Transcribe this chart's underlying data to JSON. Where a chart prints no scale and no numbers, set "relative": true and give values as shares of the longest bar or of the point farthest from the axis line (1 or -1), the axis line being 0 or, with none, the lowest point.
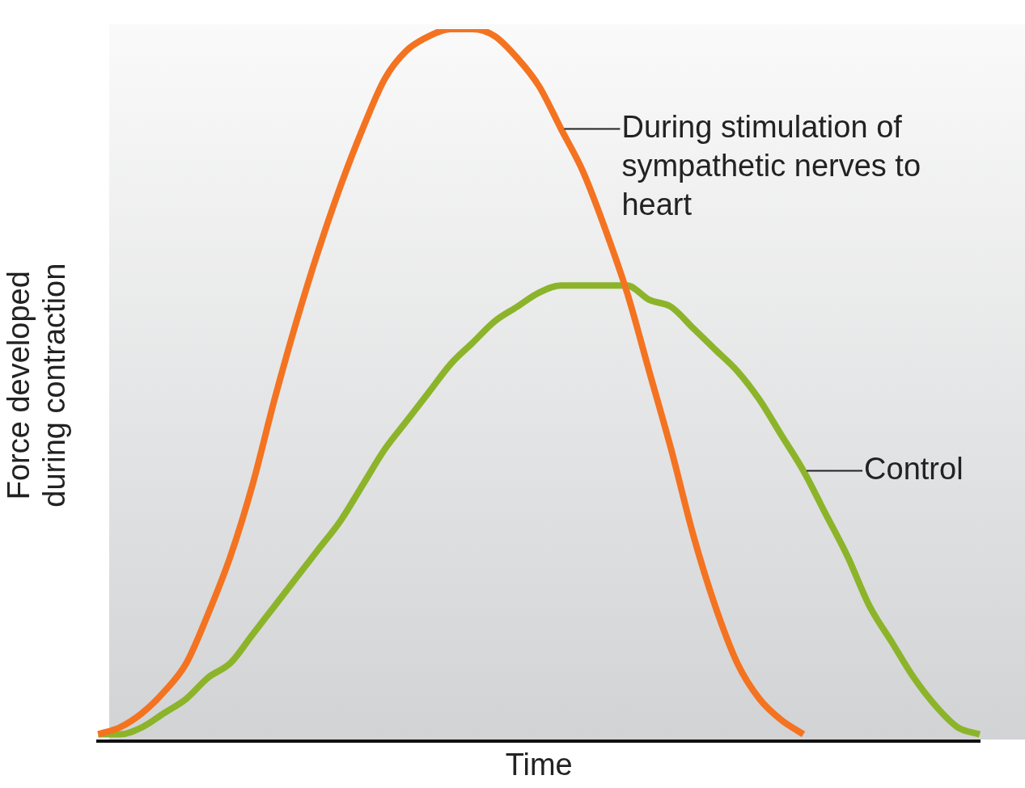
{
  "chart_data": {
    "type": "line",
    "relative": true,
    "xlabel": "Time",
    "ylabel": "Force developed\nduring contraction",
    "grid": false,
    "legend": false,
    "marker": "none",
    "line_style": "solid",
    "categories": [
      null,
      null,
      null,
      null,
      null,
      null,
      null,
      null,
      null,
      null,
      null,
      null,
      null,
      null,
      null,
      null,
      null,
      null,
      null,
      null,
      null,
      null,
      null,
      null,
      null,
      null,
      null,
      null,
      null,
      null,
      null,
      null,
      null,
      null,
      null,
      null,
      null,
      null,
      null,
      null,
      null
    ],
    "series": [
      {
        "name": "During stimulation of sympathetic nerves to heart",
        "color": "#f47321",
        "values": [
          0.01,
          0.02,
          0.04,
          0.07,
          0.11,
          0.18,
          0.26,
          0.36,
          0.48,
          0.59,
          0.69,
          0.78,
          0.86,
          0.93,
          0.97,
          0.99,
          1.0,
          1.0,
          0.99,
          0.96,
          0.92,
          0.86,
          0.8,
          0.72,
          0.63,
          0.52,
          0.41,
          0.29,
          0.19,
          0.11,
          0.06,
          0.03,
          0.01,
          null,
          null,
          null,
          null,
          null,
          null,
          null,
          null
        ]
      },
      {
        "name": "Control",
        "color": "#8cb42a",
        "values": [
          0.01,
          0.01,
          0.02,
          0.04,
          0.06,
          0.09,
          0.11,
          0.15,
          0.19,
          0.23,
          0.27,
          0.31,
          0.36,
          0.41,
          0.45,
          0.49,
          0.53,
          0.56,
          0.59,
          0.61,
          0.63,
          0.64,
          0.64,
          0.64,
          0.64,
          0.62,
          0.61,
          0.58,
          0.55,
          0.52,
          0.48,
          0.43,
          0.38,
          0.32,
          0.26,
          0.19,
          0.14,
          0.09,
          0.05,
          0.02,
          0.01
        ]
      }
    ]
  }
}
